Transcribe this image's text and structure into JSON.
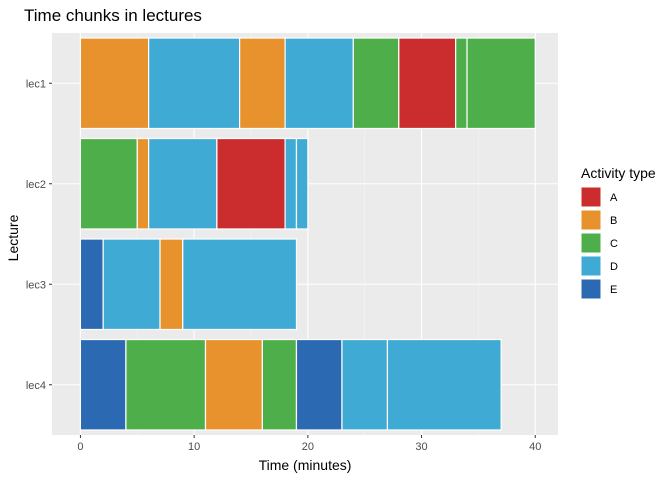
{
  "chart_data": {
    "type": "bar",
    "orientation": "horizontal-stacked",
    "title": "Time chunks in lectures",
    "xlabel": "Time (minutes)",
    "ylabel": "Lecture",
    "xlim": [
      -2.5,
      42
    ],
    "x_ticks": [
      0,
      10,
      20,
      30,
      40
    ],
    "grid": true,
    "legend": {
      "title": "Activity type",
      "placement": "right",
      "entries": [
        {
          "label": "A",
          "color": "#CB2D2F"
        },
        {
          "label": "B",
          "color": "#E8922E"
        },
        {
          "label": "C",
          "color": "#4EAF4A"
        },
        {
          "label": "D",
          "color": "#3FABD4"
        },
        {
          "label": "E",
          "color": "#2B6AB2"
        }
      ]
    },
    "categories": [
      "lec1",
      "lec2",
      "lec3",
      "lec4"
    ],
    "segments": [
      {
        "lecture": "lec1",
        "type": "B",
        "start": 0,
        "end": 6
      },
      {
        "lecture": "lec1",
        "type": "D",
        "start": 6,
        "end": 14
      },
      {
        "lecture": "lec1",
        "type": "B",
        "start": 14,
        "end": 18
      },
      {
        "lecture": "lec1",
        "type": "D",
        "start": 18,
        "end": 24
      },
      {
        "lecture": "lec1",
        "type": "C",
        "start": 24,
        "end": 28
      },
      {
        "lecture": "lec1",
        "type": "A",
        "start": 28,
        "end": 33
      },
      {
        "lecture": "lec1",
        "type": "C",
        "start": 33,
        "end": 34
      },
      {
        "lecture": "lec1",
        "type": "C",
        "start": 34,
        "end": 40
      },
      {
        "lecture": "lec2",
        "type": "C",
        "start": 0,
        "end": 5
      },
      {
        "lecture": "lec2",
        "type": "B",
        "start": 5,
        "end": 6
      },
      {
        "lecture": "lec2",
        "type": "D",
        "start": 6,
        "end": 12
      },
      {
        "lecture": "lec2",
        "type": "A",
        "start": 12,
        "end": 18
      },
      {
        "lecture": "lec2",
        "type": "D",
        "start": 18,
        "end": 19
      },
      {
        "lecture": "lec2",
        "type": "D",
        "start": 19,
        "end": 20
      },
      {
        "lecture": "lec3",
        "type": "E",
        "start": 0,
        "end": 2
      },
      {
        "lecture": "lec3",
        "type": "D",
        "start": 2,
        "end": 7
      },
      {
        "lecture": "lec3",
        "type": "B",
        "start": 7,
        "end": 9
      },
      {
        "lecture": "lec3",
        "type": "D",
        "start": 9,
        "end": 19
      },
      {
        "lecture": "lec4",
        "type": "E",
        "start": 0,
        "end": 4
      },
      {
        "lecture": "lec4",
        "type": "C",
        "start": 4,
        "end": 11
      },
      {
        "lecture": "lec4",
        "type": "B",
        "start": 11,
        "end": 16
      },
      {
        "lecture": "lec4",
        "type": "C",
        "start": 16,
        "end": 19
      },
      {
        "lecture": "lec4",
        "type": "E",
        "start": 19,
        "end": 23
      },
      {
        "lecture": "lec4",
        "type": "D",
        "start": 23,
        "end": 27
      },
      {
        "lecture": "lec4",
        "type": "D",
        "start": 27,
        "end": 37
      }
    ],
    "colors": {
      "panel_background": "#EBEBEB",
      "grid_major": "#FFFFFF",
      "grid_minor": "#F5F5F5",
      "bar_outline": "#FFFFFF"
    }
  }
}
